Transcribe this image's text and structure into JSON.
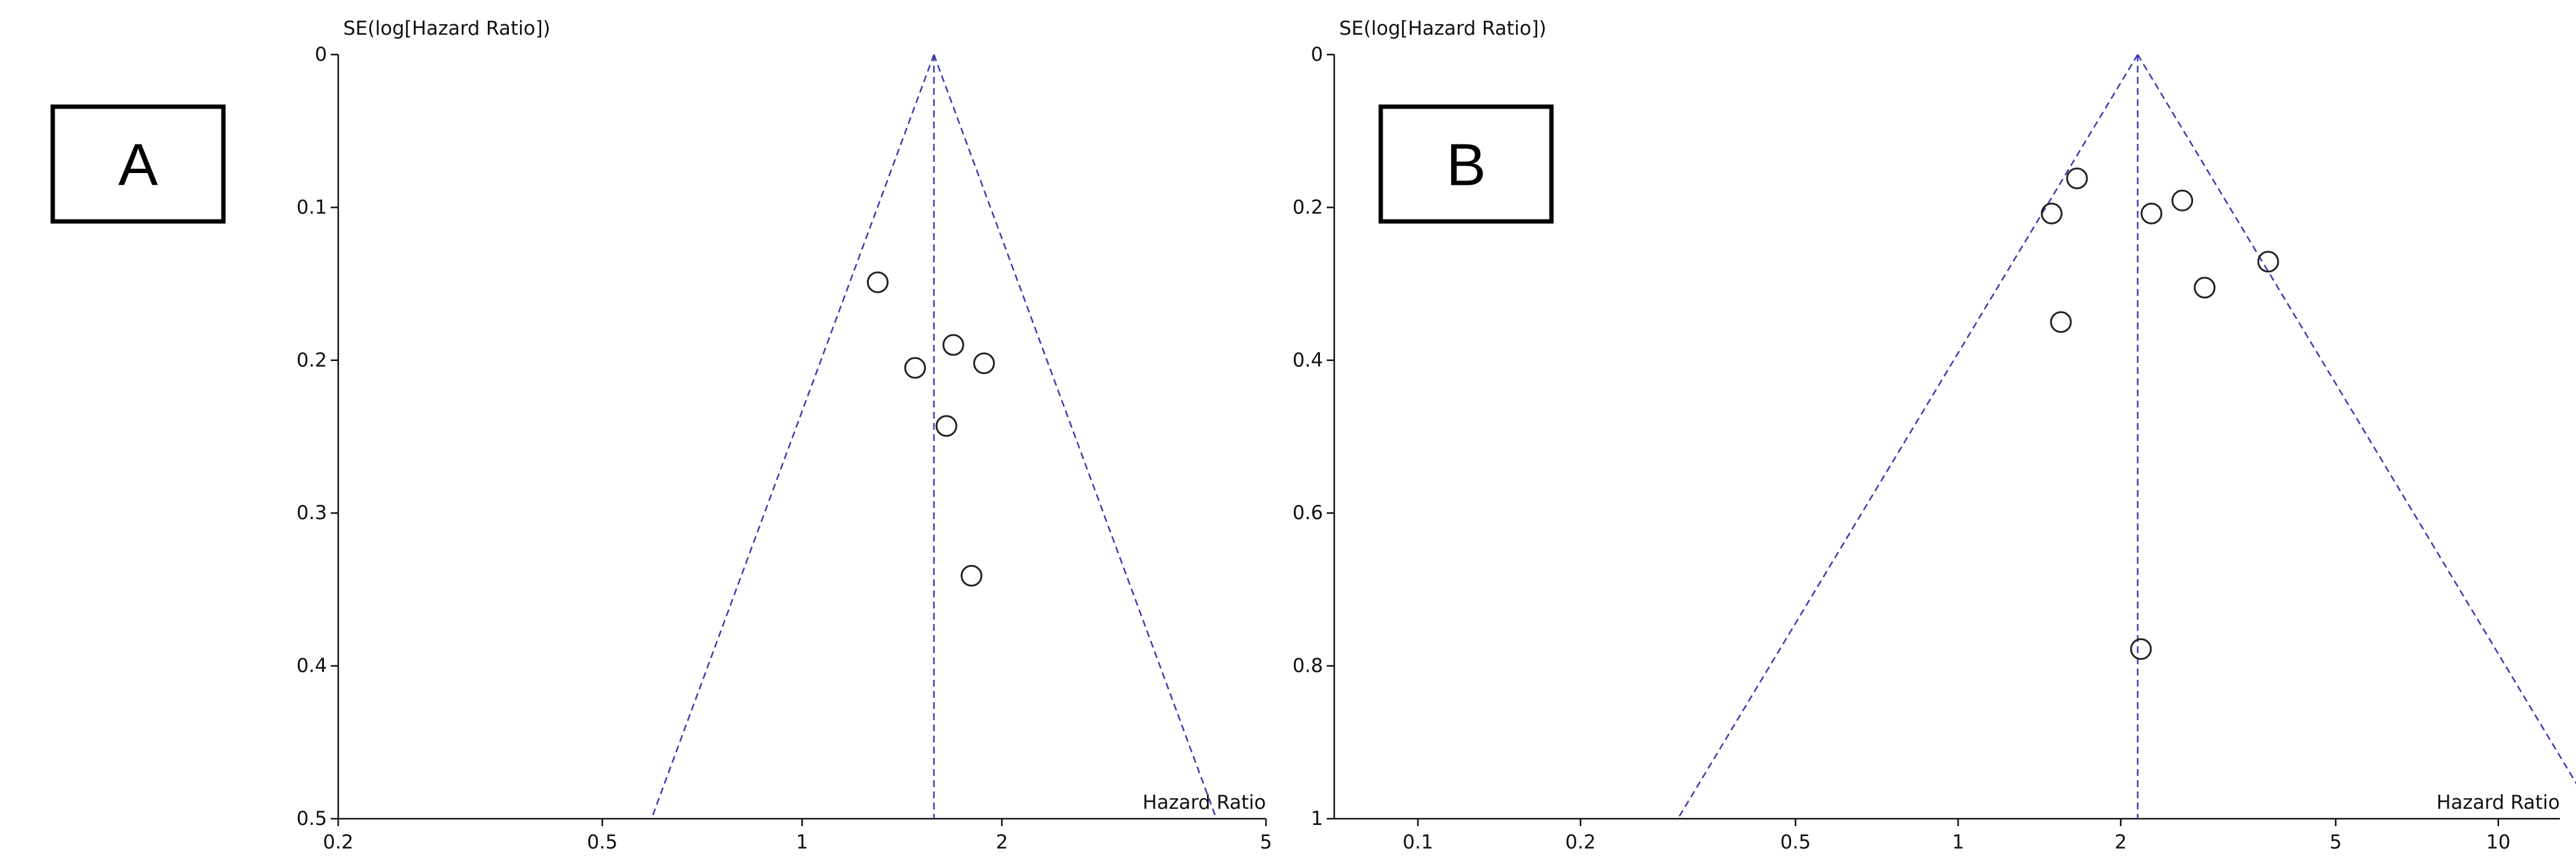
{
  "chart_data": [
    {
      "type": "scatter",
      "subtype": "funnel",
      "panel_label": "A",
      "xlabel": "Hazard Ratio",
      "ylabel": "SE(log[Hazard Ratio])",
      "x_scale": "log",
      "xlim": [
        0.2,
        5
      ],
      "x_ticks": [
        0.2,
        0.5,
        1,
        2,
        5
      ],
      "x_tick_labels": [
        "0.2",
        "0.5",
        "1",
        "2",
        "5"
      ],
      "ylim": [
        0,
        0.5
      ],
      "y_inverted": true,
      "y_ticks": [
        0,
        0.1,
        0.2,
        0.3,
        0.4,
        0.5
      ],
      "y_tick_labels": [
        "0",
        "0.1",
        "0.2",
        "0.3",
        "0.4",
        "0.5"
      ],
      "grid": false,
      "summary_estimate": 1.58,
      "funnel_max_se": 0.5,
      "funnel_color": "#3b3bb0",
      "marker_color": "#222222",
      "points": [
        {
          "x": 1.3,
          "y": 0.149
        },
        {
          "x": 1.48,
          "y": 0.205
        },
        {
          "x": 1.69,
          "y": 0.19
        },
        {
          "x": 1.88,
          "y": 0.202
        },
        {
          "x": 1.65,
          "y": 0.243
        },
        {
          "x": 1.8,
          "y": 0.341
        }
      ]
    },
    {
      "type": "scatter",
      "subtype": "funnel",
      "panel_label": "B",
      "xlabel": "Hazard Ratio",
      "ylabel": "SE(log[Hazard Ratio])",
      "x_scale": "log",
      "xlim": [
        0.07,
        13
      ],
      "x_ticks": [
        0.1,
        0.2,
        0.5,
        1,
        2,
        5,
        10
      ],
      "x_tick_labels": [
        "0.1",
        "0.2",
        "0.5",
        "1",
        "2",
        "5",
        "10"
      ],
      "ylim": [
        0,
        1
      ],
      "y_inverted": true,
      "y_ticks": [
        0,
        0.2,
        0.4,
        0.6,
        0.8,
        1
      ],
      "y_tick_labels": [
        "0",
        "0.2",
        "0.4",
        "0.6",
        "0.8",
        "1"
      ],
      "grid": false,
      "summary_estimate": 2.15,
      "funnel_max_se": 1,
      "funnel_color": "#3b3bb0",
      "marker_color": "#222222",
      "points": [
        {
          "x": 1.66,
          "y": 0.162
        },
        {
          "x": 1.49,
          "y": 0.208
        },
        {
          "x": 2.28,
          "y": 0.208
        },
        {
          "x": 2.6,
          "y": 0.191
        },
        {
          "x": 3.75,
          "y": 0.271
        },
        {
          "x": 2.86,
          "y": 0.305
        },
        {
          "x": 1.55,
          "y": 0.35
        },
        {
          "x": 2.18,
          "y": 0.778
        }
      ]
    }
  ]
}
